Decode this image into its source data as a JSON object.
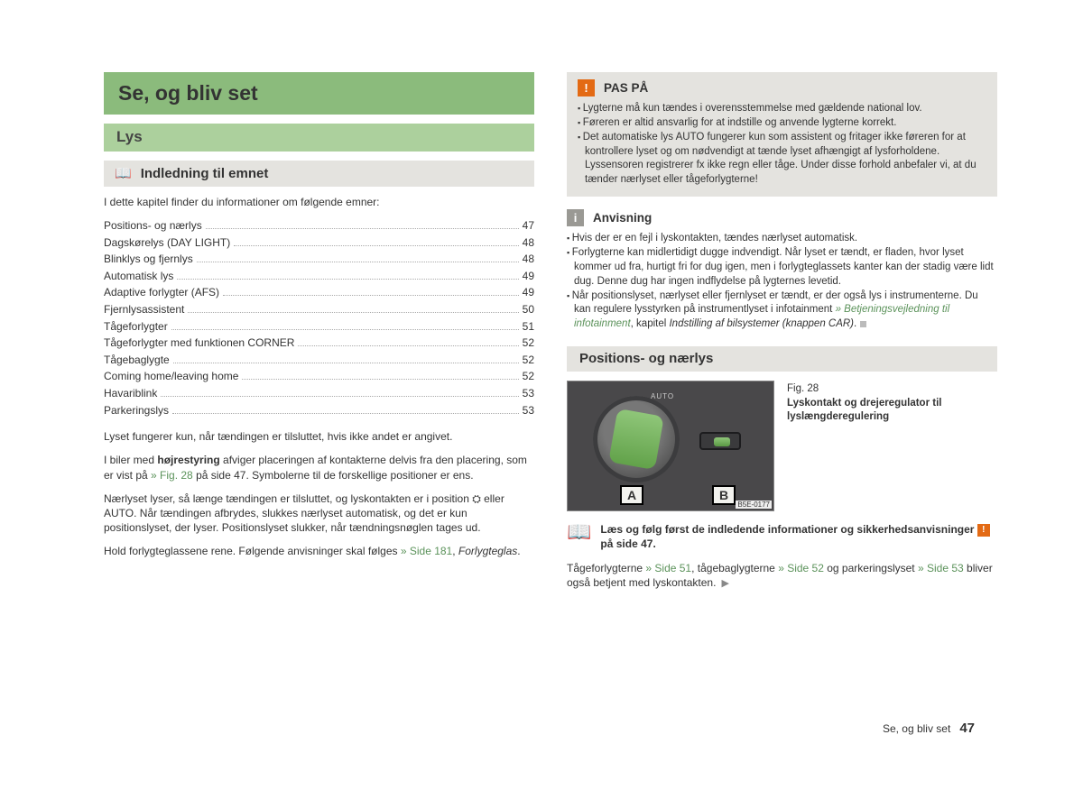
{
  "colors": {
    "h1": "#8bbb7c",
    "h2": "#acd09d",
    "section_bg": "#e4e3df",
    "link": "#5b925a",
    "warn": "#e36a14",
    "info_badge": "#9a9994"
  },
  "left": {
    "title": "Se, og bliv set",
    "subtitle": "Lys",
    "section_heading": "Indledning til emnet",
    "intro": "I dette kapitel finder du informationer om følgende emner:",
    "toc": [
      {
        "label": "Positions- og nærlys",
        "page": "47"
      },
      {
        "label": "Dagskørelys (DAY LIGHT)",
        "page": "48"
      },
      {
        "label": "Blinklys og fjernlys",
        "page": "48"
      },
      {
        "label": "Automatisk lys",
        "page": "49"
      },
      {
        "label": "Adaptive forlygter (AFS)",
        "page": "49"
      },
      {
        "label": "Fjernlysassistent",
        "page": "50"
      },
      {
        "label": "Tågeforlygter",
        "page": "51"
      },
      {
        "label": "Tågeforlygter med funktionen CORNER",
        "page": "52"
      },
      {
        "label": "Tågebaglygte",
        "page": "52"
      },
      {
        "label": "Coming home/leaving home",
        "page": "52"
      },
      {
        "label": "Havariblink",
        "page": "53"
      },
      {
        "label": "Parkeringslys",
        "page": "53"
      }
    ],
    "p1": "Lyset fungerer kun, når tændingen er tilsluttet, hvis ikke andet er angivet.",
    "p2_a": "I biler med ",
    "p2_b": "højrestyring",
    "p2_c": " afviger placeringen af kontakterne delvis fra den placering, som er vist på ",
    "p2_ref": "» Fig. 28",
    "p2_d": " på side 47. Symbolerne til de forskellige positioner er ens.",
    "p3": "Nærlyset lyser, så længe tændingen er tilsluttet, og lyskontakten er i position ⛭ eller AUTO. Når tændingen afbrydes, slukkes nærlyset automatisk, og det er kun positionslyset, der lyser. Positionslyset slukker, når tændningsnøglen tages ud.",
    "p4_a": "Hold forlygteglassene rene. Følgende anvisninger skal følges ",
    "p4_ref": "» Side 181",
    "p4_b": ", ",
    "p4_it": "Forlygteglas",
    "p4_c": "."
  },
  "right": {
    "caution_title": "PAS PÅ",
    "caution_items": [
      "Lygterne må kun tændes i overensstemmelse med gældende national lov.",
      "Føreren er altid ansvarlig for at indstille og anvende lygterne korrekt.",
      "Det automatiske lys AUTO fungerer kun som assistent og fritager ikke føreren for at kontrollere lyset og om nødvendigt at tænde lyset afhængigt af lysforholdene. Lyssensoren registrerer fx ikke regn eller tåge. Under disse forhold anbefaler vi, at du tænder nærlyset eller tågeforlygterne!"
    ],
    "note_title": "Anvisning",
    "note_items_1": "Hvis der er en fejl i lyskontakten, tændes nærlyset automatisk.",
    "note_items_2": "Forlygterne kan midlertidigt dugge indvendigt. Når lyset er tændt, er fladen, hvor lyset kommer ud fra, hurtigt fri for dug igen, men i forlygteglassets kanter kan der stadig være lidt dug. Denne dug har ingen indflydelse på lygternes levetid.",
    "note_items_3a": "Når positionslyset, nærlyset eller fjernlyset er tændt, er der også lys i instrumenterne. Du kan regulere lysstyrken på instrumentlyset i infotainment ",
    "note_items_3it1": "» Betjeningsvejledning til infotainment",
    "note_items_3b": ", kapitel ",
    "note_items_3it2": "Indstilling af bilsystemer (knappen CAR)",
    "note_items_3c": ".",
    "section2": "Positions- og nærlys",
    "fig_no": "Fig. 28",
    "fig_caption": "Lyskontakt og drejeregulator til lyslængderegulering",
    "fig_labelA": "A",
    "fig_labelB": "B",
    "fig_auto": "AUTO",
    "fig_code": "B5E-0177",
    "readfirst_a": "Læs og følg først de indledende informationer og sikkerhedsanvisninger ",
    "readfirst_b": " på side 47.",
    "p_last_a": "Tågeforlygterne ",
    "p_last_r1": "» Side 51",
    "p_last_b": ", tågebaglygterne ",
    "p_last_r2": "» Side 52",
    "p_last_c": " og parkeringslyset ",
    "p_last_r3": "» Side 53",
    "p_last_d": " bliver også betjent med lyskontakten."
  },
  "footer": {
    "text": "Se, og bliv set",
    "page": "47"
  }
}
